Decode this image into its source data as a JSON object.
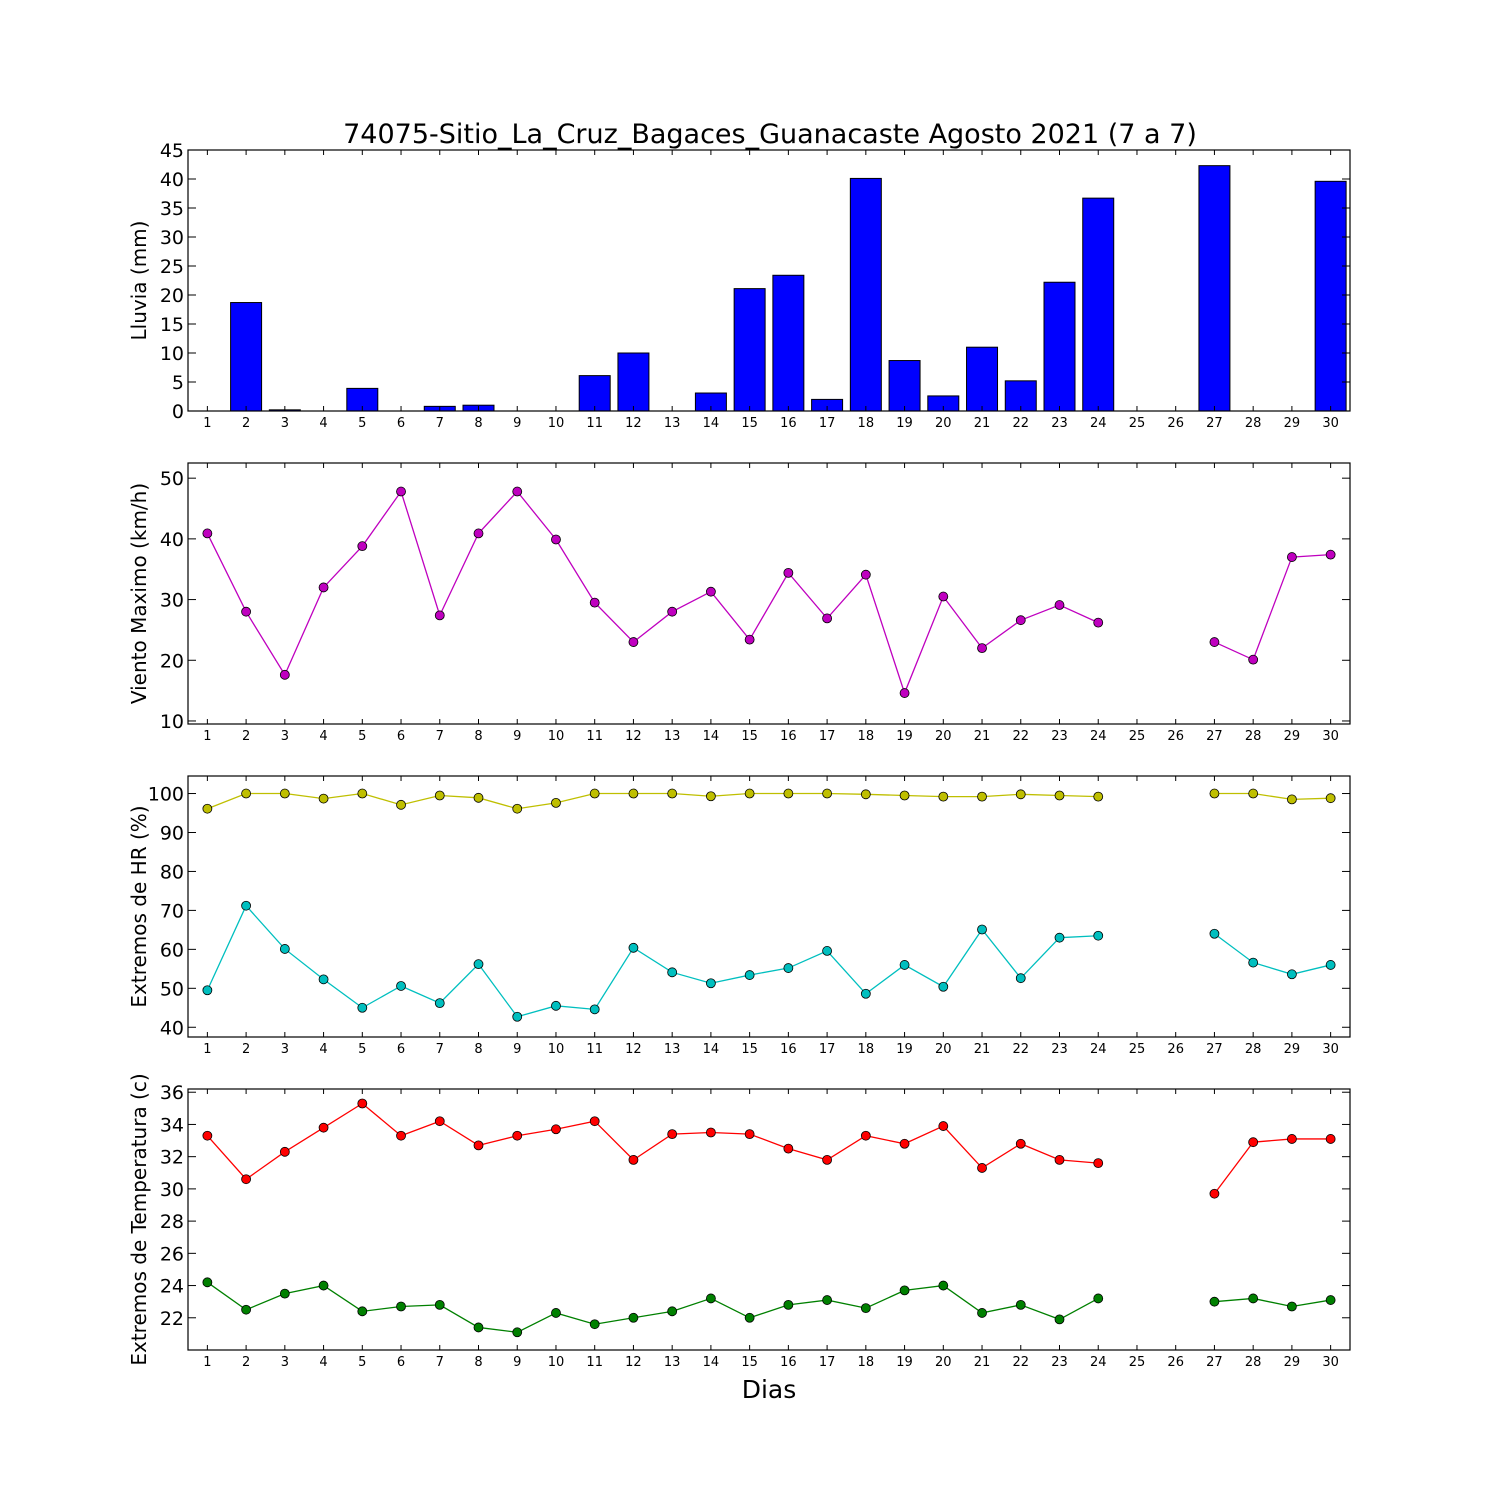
{
  "chart_data": {
    "title": "74075-Sitio_La_Cruz_Bagaces_Guanacaste Agosto 2021  (7 a 7)",
    "xlabel": "Dias",
    "days": [
      1,
      2,
      3,
      4,
      5,
      6,
      7,
      8,
      9,
      10,
      11,
      12,
      13,
      14,
      15,
      16,
      17,
      18,
      19,
      20,
      21,
      22,
      23,
      24,
      25,
      26,
      27,
      28,
      29,
      30
    ],
    "panels": [
      {
        "id": "lluvia",
        "type": "bar",
        "ylabel": "Lluvia (mm)",
        "ylim": [
          0,
          45
        ],
        "yticks": [
          0,
          5,
          10,
          15,
          20,
          25,
          30,
          35,
          40,
          45
        ],
        "series": [
          {
            "color": "#0000ff",
            "values": [
              0,
              18.7,
              0.2,
              0,
              3.9,
              0,
              0.8,
              1.0,
              0,
              0,
              6.1,
              10.0,
              0,
              3.1,
              21.1,
              23.4,
              2.0,
              40.1,
              8.7,
              2.6,
              11.0,
              5.2,
              22.2,
              36.7,
              0,
              0,
              42.3,
              0,
              0,
              39.6
            ]
          }
        ]
      },
      {
        "id": "viento",
        "type": "line",
        "ylabel": "Viento Maximo (km/h)",
        "ylim": [
          9.5,
          52.5
        ],
        "yticks": [
          10,
          20,
          30,
          40,
          50
        ],
        "series": [
          {
            "color": "#bf00bf",
            "values": [
              40.9,
              28.0,
              17.6,
              32.0,
              38.8,
              47.8,
              27.4,
              40.9,
              47.8,
              39.9,
              29.5,
              23.0,
              28.0,
              31.3,
              23.4,
              34.4,
              26.9,
              34.1,
              14.6,
              30.5,
              22.0,
              26.6,
              29.1,
              26.2,
              null,
              null,
              23.0,
              20.1,
              37.0,
              37.4
            ]
          }
        ]
      },
      {
        "id": "hr",
        "type": "line",
        "ylabel": "Extremos de HR (%)",
        "ylim": [
          37.5,
          104.5
        ],
        "yticks": [
          40,
          50,
          60,
          70,
          80,
          90,
          100
        ],
        "series": [
          {
            "color": "#bfbf00",
            "values": [
              96.1,
              100.0,
              100.0,
              98.7,
              100.0,
              97.1,
              99.5,
              98.9,
              96.1,
              97.6,
              100.0,
              100.0,
              100.0,
              99.3,
              100.0,
              100.0,
              100.0,
              99.8,
              99.5,
              99.2,
              99.2,
              99.8,
              99.5,
              99.2,
              null,
              null,
              100.0,
              100.0,
              98.5,
              98.8
            ]
          },
          {
            "color": "#00bfbf",
            "values": [
              49.5,
              71.2,
              60.1,
              52.3,
              45.0,
              50.6,
              46.2,
              56.2,
              42.7,
              45.5,
              44.6,
              60.4,
              54.1,
              51.3,
              53.4,
              55.2,
              59.6,
              48.6,
              56.0,
              50.4,
              65.1,
              52.6,
              63.0,
              63.5,
              null,
              null,
              64.0,
              56.6,
              53.6,
              56.0
            ]
          }
        ]
      },
      {
        "id": "temp",
        "type": "line",
        "ylabel": "Extremos de Temperatura (c)",
        "ylim": [
          20,
          36.2
        ],
        "yticks": [
          22,
          24,
          26,
          28,
          30,
          32,
          34,
          36
        ],
        "series": [
          {
            "color": "#ff0000",
            "values": [
              33.3,
              30.6,
              32.3,
              33.8,
              35.3,
              33.3,
              34.2,
              32.7,
              33.3,
              33.7,
              34.2,
              31.8,
              33.4,
              33.5,
              33.4,
              32.5,
              31.8,
              33.3,
              32.8,
              33.9,
              31.3,
              32.8,
              31.8,
              31.6,
              null,
              null,
              29.7,
              32.9,
              33.1,
              33.1
            ]
          },
          {
            "color": "#008000",
            "values": [
              24.2,
              22.5,
              23.5,
              24.0,
              22.4,
              22.7,
              22.8,
              21.4,
              21.1,
              22.3,
              21.6,
              22.0,
              22.4,
              23.2,
              22.0,
              22.8,
              23.1,
              22.6,
              23.7,
              24.0,
              22.3,
              22.8,
              21.9,
              23.2,
              null,
              null,
              23.0,
              23.2,
              22.7,
              23.1
            ]
          }
        ]
      }
    ]
  }
}
